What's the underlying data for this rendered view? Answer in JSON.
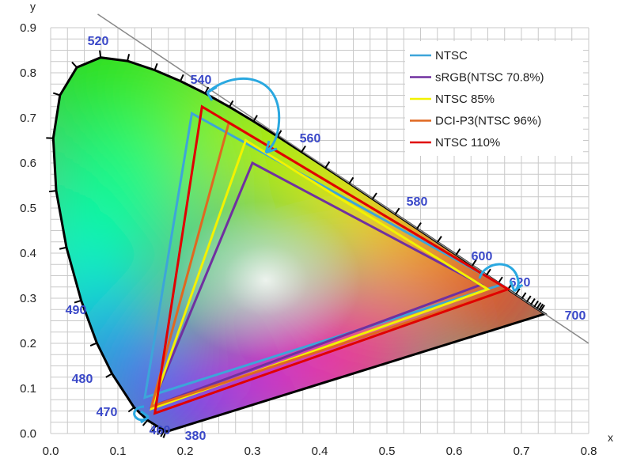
{
  "chart_data": {
    "type": "line",
    "xlabel": "x",
    "ylabel": "y",
    "xlim": [
      0.0,
      0.8
    ],
    "ylim": [
      0.0,
      0.9
    ],
    "x_ticks": [
      "0.0",
      "0.1",
      "0.2",
      "0.3",
      "0.4",
      "0.5",
      "0.6",
      "0.7",
      "0.8"
    ],
    "y_ticks": [
      "0.0",
      "0.1",
      "0.2",
      "0.3",
      "0.4",
      "0.5",
      "0.6",
      "0.7",
      "0.8",
      "0.9"
    ],
    "grid": true,
    "legend_position": "top-right",
    "spectral_locus": {
      "labels": [
        "460",
        "470",
        "480",
        "490",
        "520",
        "540",
        "560",
        "580",
        "600",
        "620",
        "700",
        "380"
      ],
      "points": [
        [
          0.1741,
          0.005
        ],
        [
          0.1726,
          0.0048
        ],
        [
          0.1714,
          0.0051
        ],
        [
          0.1689,
          0.0069
        ],
        [
          0.1644,
          0.0109
        ],
        [
          0.1566,
          0.0177
        ],
        [
          0.144,
          0.0297
        ],
        [
          0.1241,
          0.0578
        ],
        [
          0.0913,
          0.1327
        ],
        [
          0.0687,
          0.2007
        ],
        [
          0.0454,
          0.295
        ],
        [
          0.0235,
          0.4127
        ],
        [
          0.0082,
          0.5384
        ],
        [
          0.0039,
          0.6548
        ],
        [
          0.0139,
          0.7502
        ],
        [
          0.0389,
          0.812
        ],
        [
          0.0743,
          0.8338
        ],
        [
          0.1142,
          0.8262
        ],
        [
          0.1547,
          0.8059
        ],
        [
          0.1929,
          0.7816
        ],
        [
          0.2296,
          0.7543
        ],
        [
          0.2658,
          0.7243
        ],
        [
          0.3016,
          0.6923
        ],
        [
          0.3373,
          0.6589
        ],
        [
          0.3731,
          0.6245
        ],
        [
          0.4087,
          0.5896
        ],
        [
          0.4441,
          0.5547
        ],
        [
          0.4788,
          0.5202
        ],
        [
          0.5125,
          0.4866
        ],
        [
          0.5448,
          0.4544
        ],
        [
          0.5752,
          0.4242
        ],
        [
          0.6029,
          0.3965
        ],
        [
          0.627,
          0.3725
        ],
        [
          0.6482,
          0.3514
        ],
        [
          0.6658,
          0.334
        ],
        [
          0.6801,
          0.3197
        ],
        [
          0.6915,
          0.3083
        ],
        [
          0.7006,
          0.2993
        ],
        [
          0.7079,
          0.292
        ],
        [
          0.714,
          0.2859
        ],
        [
          0.719,
          0.2809
        ],
        [
          0.723,
          0.277
        ],
        [
          0.726,
          0.274
        ],
        [
          0.7283,
          0.2717
        ],
        [
          0.73,
          0.27
        ],
        [
          0.7347,
          0.2653
        ]
      ]
    },
    "series": [
      {
        "name": "NTSC",
        "color": "#3da5d9",
        "points": [
          [
            0.67,
            0.33
          ],
          [
            0.21,
            0.71
          ],
          [
            0.14,
            0.08
          ]
        ]
      },
      {
        "name": "sRGB(NTSC 70.8%)",
        "color": "#7030a0",
        "points": [
          [
            0.64,
            0.33
          ],
          [
            0.3,
            0.6
          ],
          [
            0.15,
            0.06
          ]
        ]
      },
      {
        "name": "NTSC 85%",
        "color": "#f2f200",
        "points": [
          [
            0.65,
            0.32
          ],
          [
            0.29,
            0.65
          ],
          [
            0.15,
            0.055
          ]
        ]
      },
      {
        "name": "DCI-P3(NTSC 96%)",
        "color": "#e06820",
        "points": [
          [
            0.68,
            0.32
          ],
          [
            0.265,
            0.69
          ],
          [
            0.15,
            0.06
          ]
        ]
      },
      {
        "name": "NTSC 110%",
        "color": "#e00000",
        "points": [
          [
            0.68,
            0.32
          ],
          [
            0.225,
            0.725
          ],
          [
            0.155,
            0.045
          ]
        ]
      }
    ]
  }
}
